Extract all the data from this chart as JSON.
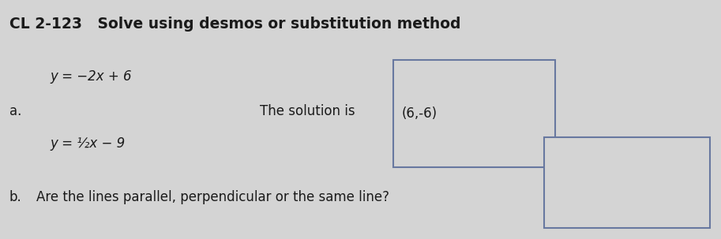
{
  "title": "CL 2-123   Solve using desmos or substitution method",
  "title_fontsize": 13.5,
  "label_a": "a.",
  "eq1": "y = −2x + 6",
  "eq2": "y = ½x − 9",
  "solution_label": "The solution is",
  "solution_value": "(6,-6)",
  "label_b": "b.",
  "question_b": "Are the lines parallel, perpendicular or the same line?",
  "bg_color": "#d4d4d4",
  "text_color": "#1a1a1a",
  "box_edge_color": "#6878a0",
  "box_face_color": "#d4d4d4",
  "font_size_main": 12,
  "font_size_eq": 12,
  "font_size_title": 13.5
}
